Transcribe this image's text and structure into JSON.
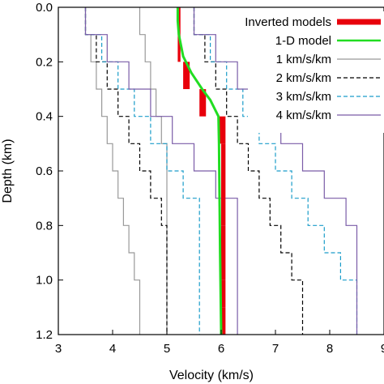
{
  "chart_data": {
    "type": "line",
    "xlabel": "Velocity (km/s)",
    "ylabel": "Depth (km)",
    "xlim": [
      3,
      9
    ],
    "ylim": [
      1.2,
      0.0
    ],
    "y_inverted": true,
    "x_ticks": [
      "3",
      "4",
      "5",
      "6",
      "7",
      "8",
      "9"
    ],
    "y_ticks": [
      "0.0",
      "0.2",
      "0.4",
      "0.6",
      "0.8",
      "1.0",
      "1.2"
    ],
    "legend_position": "top-right",
    "legend": [
      {
        "label": "Inverted models",
        "color": "#e8000b",
        "style": "thick"
      },
      {
        "label": "1-D model",
        "color": "#22dd22",
        "style": "solid"
      },
      {
        "label": "1 km/s/km",
        "color": "#999999",
        "style": "solid"
      },
      {
        "label": "2 km/s/km",
        "color": "#000000",
        "style": "dashed"
      },
      {
        "label": "3 km/s/km",
        "color": "#1a9cc9",
        "style": "dashed"
      },
      {
        "label": "4 km/s/km",
        "color": "#7a5ca8",
        "style": "solid"
      }
    ],
    "series": [
      {
        "name": "Inverted models",
        "color": "#e8000b",
        "kind": "step",
        "depths": [
          0.0,
          0.1,
          0.2,
          0.3,
          0.4,
          0.5,
          0.6,
          0.7,
          0.8,
          0.9,
          1.0,
          1.1,
          1.2
        ],
        "velocity_min": [
          5.2,
          5.2,
          5.3,
          5.6,
          5.95,
          6.0,
          6.0,
          6.0,
          6.0,
          6.0,
          6.0,
          6.0
        ],
        "velocity_max": [
          5.25,
          5.25,
          5.42,
          5.72,
          6.08,
          6.08,
          6.08,
          6.08,
          6.08,
          6.08,
          6.08,
          6.08
        ]
      },
      {
        "name": "1-D model",
        "color": "#22dd22",
        "kind": "curve",
        "points": [
          [
            5.2,
            0.0
          ],
          [
            5.2,
            0.05
          ],
          [
            5.22,
            0.1
          ],
          [
            5.3,
            0.18
          ],
          [
            5.45,
            0.24
          ],
          [
            5.65,
            0.3
          ],
          [
            5.8,
            0.34
          ],
          [
            5.9,
            0.38
          ],
          [
            5.95,
            0.4
          ],
          [
            5.96,
            0.5
          ],
          [
            5.97,
            0.7
          ],
          [
            5.98,
            0.9
          ],
          [
            6.0,
            1.2
          ]
        ]
      },
      {
        "name": "1 km/s/km",
        "color": "#999999",
        "kind": "bounds",
        "left": [
          3.5,
          3.6,
          3.7,
          3.8,
          3.9,
          4.0,
          4.1,
          4.2,
          4.3,
          4.4,
          4.5,
          4.5
        ],
        "right": [
          4.5,
          4.6,
          4.7,
          4.8,
          4.9,
          5.0,
          5.0,
          5.0,
          5.0,
          5.0,
          5.0,
          5.0
        ]
      },
      {
        "name": "2 km/s/km",
        "color": "#000000",
        "kind": "bounds",
        "left": [
          3.5,
          3.7,
          3.9,
          4.1,
          4.3,
          4.5,
          4.7,
          4.9,
          5.0,
          5.0,
          5.0,
          5.0
        ],
        "right": [
          5.5,
          5.7,
          5.9,
          6.1,
          6.3,
          6.5,
          6.7,
          6.9,
          7.1,
          7.3,
          7.5,
          7.5
        ]
      },
      {
        "name": "3 km/s/km",
        "color": "#1a9cc9",
        "kind": "bounds",
        "left": [
          3.5,
          3.8,
          4.1,
          4.4,
          4.7,
          5.0,
          5.3,
          5.6,
          5.6,
          5.6,
          5.6,
          5.6
        ],
        "right": [
          5.5,
          5.8,
          6.1,
          6.4,
          6.7,
          7.0,
          7.3,
          7.6,
          7.9,
          8.2,
          8.5,
          8.5
        ]
      },
      {
        "name": "4 km/s/km",
        "color": "#7a5ca8",
        "kind": "bounds",
        "left": [
          3.5,
          3.9,
          4.3,
          4.7,
          5.1,
          5.5,
          5.9,
          6.3,
          6.3,
          6.3,
          6.3,
          6.3
        ],
        "right": [
          5.5,
          5.9,
          6.3,
          6.7,
          7.1,
          7.5,
          7.9,
          8.3,
          8.5,
          8.5,
          8.5,
          8.5
        ]
      }
    ]
  }
}
